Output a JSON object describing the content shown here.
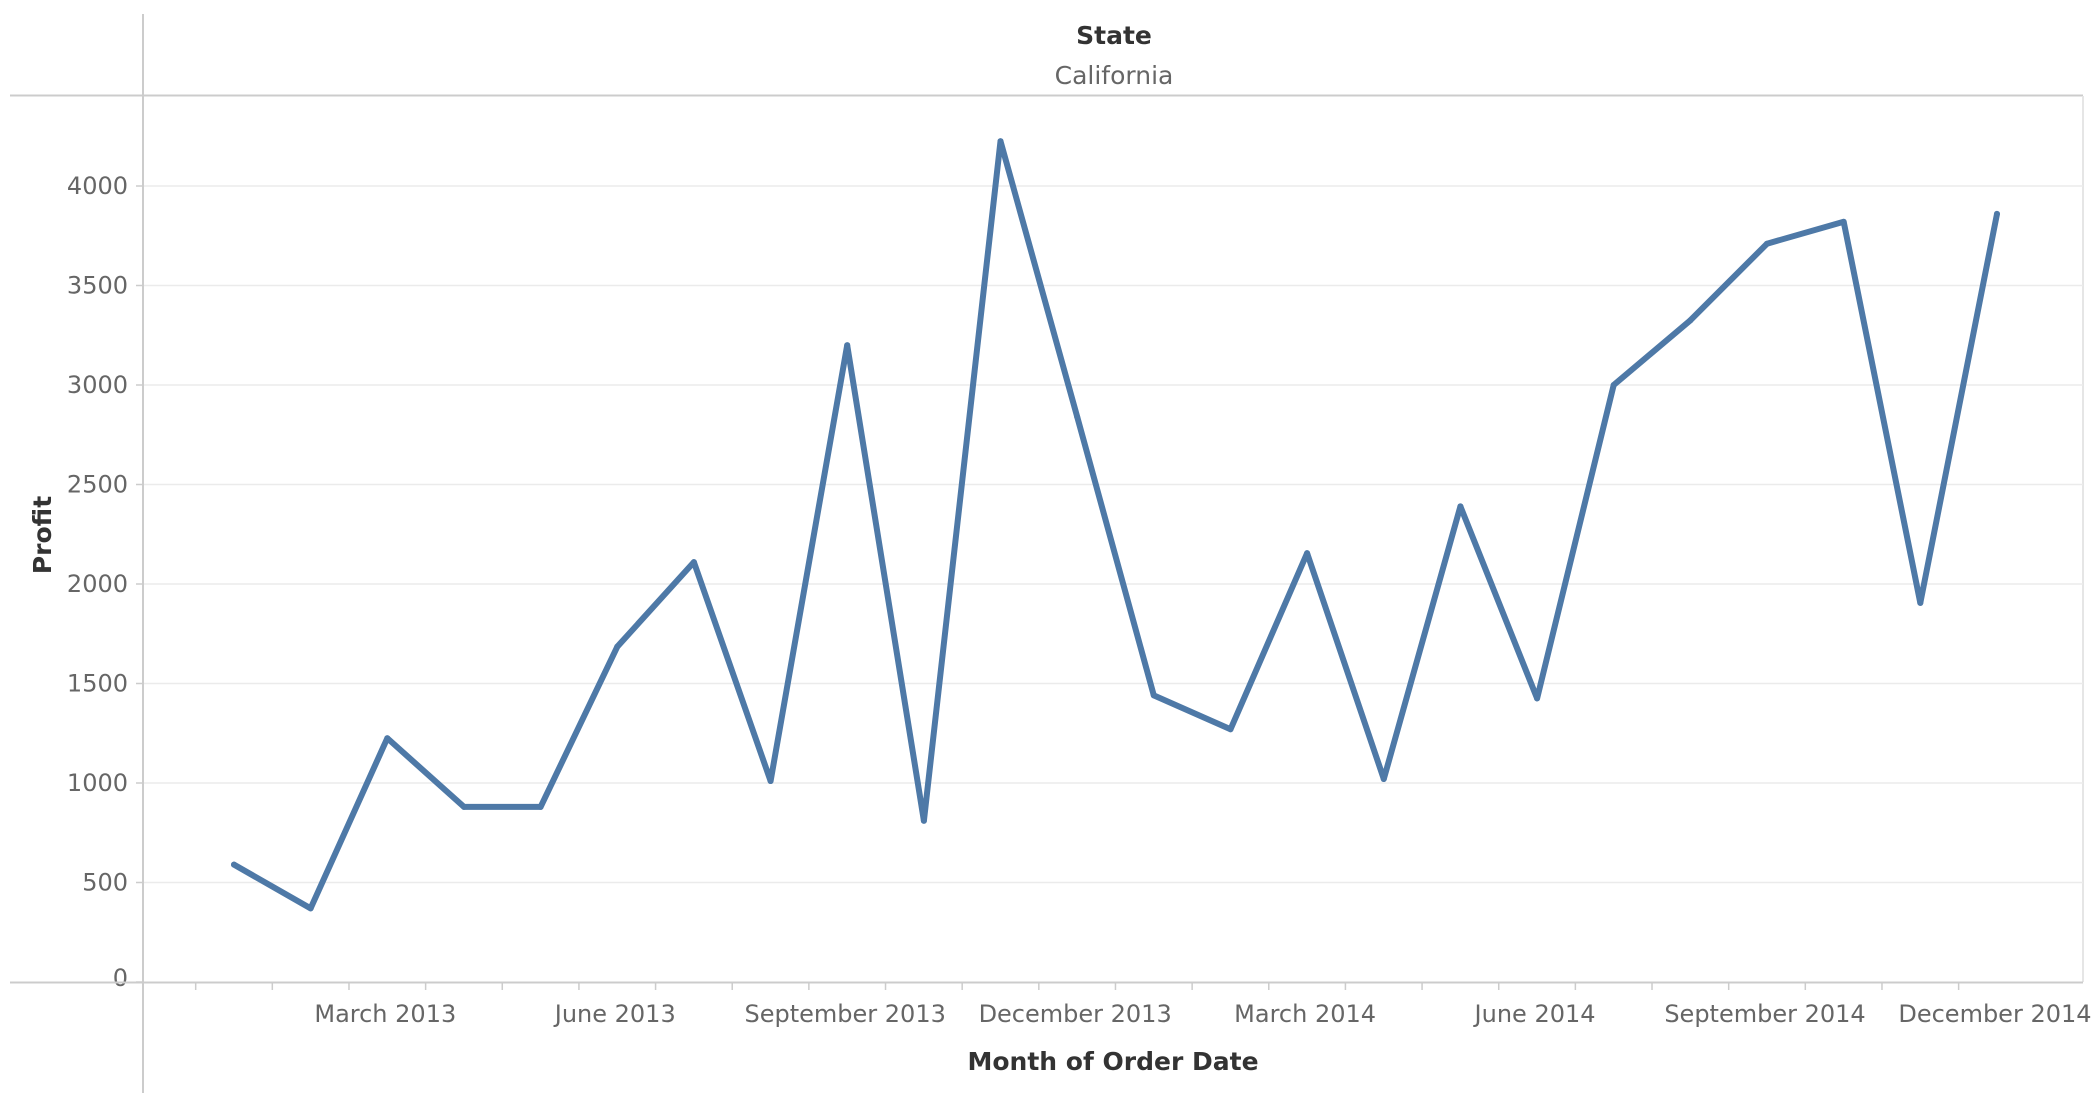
{
  "header": {
    "title": "State",
    "subtitle": "California"
  },
  "chart_data": {
    "type": "line",
    "xlabel": "Month of Order Date",
    "ylabel": "Profit",
    "x_tick_labels": [
      "March 2013",
      "June 2013",
      "September 2013",
      "December 2013",
      "March 2014",
      "June 2014",
      "September 2014",
      "December 2014"
    ],
    "y_ticks": [
      0,
      500,
      1000,
      1500,
      2000,
      2500,
      3000,
      3500,
      4000
    ],
    "ylim": [
      0,
      4300
    ],
    "grid": true,
    "x": [
      "January 2013",
      "February 2013",
      "March 2013",
      "April 2013",
      "May 2013",
      "June 2013",
      "July 2013",
      "August 2013",
      "September 2013",
      "October 2013",
      "November 2013",
      "December 2013",
      "January 2014",
      "February 2014",
      "March 2014",
      "April 2014",
      "May 2014",
      "June 2014",
      "July 2014",
      "August 2014",
      "September 2014",
      "October 2014",
      "November 2014",
      "December 2014"
    ],
    "series": [
      {
        "values": [
          590,
          370,
          1225,
          880,
          880,
          1685,
          2110,
          1010,
          3200,
          810,
          4225,
          2840,
          1440,
          1270,
          2155,
          1020,
          2390,
          1425,
          3000,
          3325,
          3710,
          3820,
          1905,
          3860
        ],
        "color": "#4e79a7"
      }
    ]
  }
}
